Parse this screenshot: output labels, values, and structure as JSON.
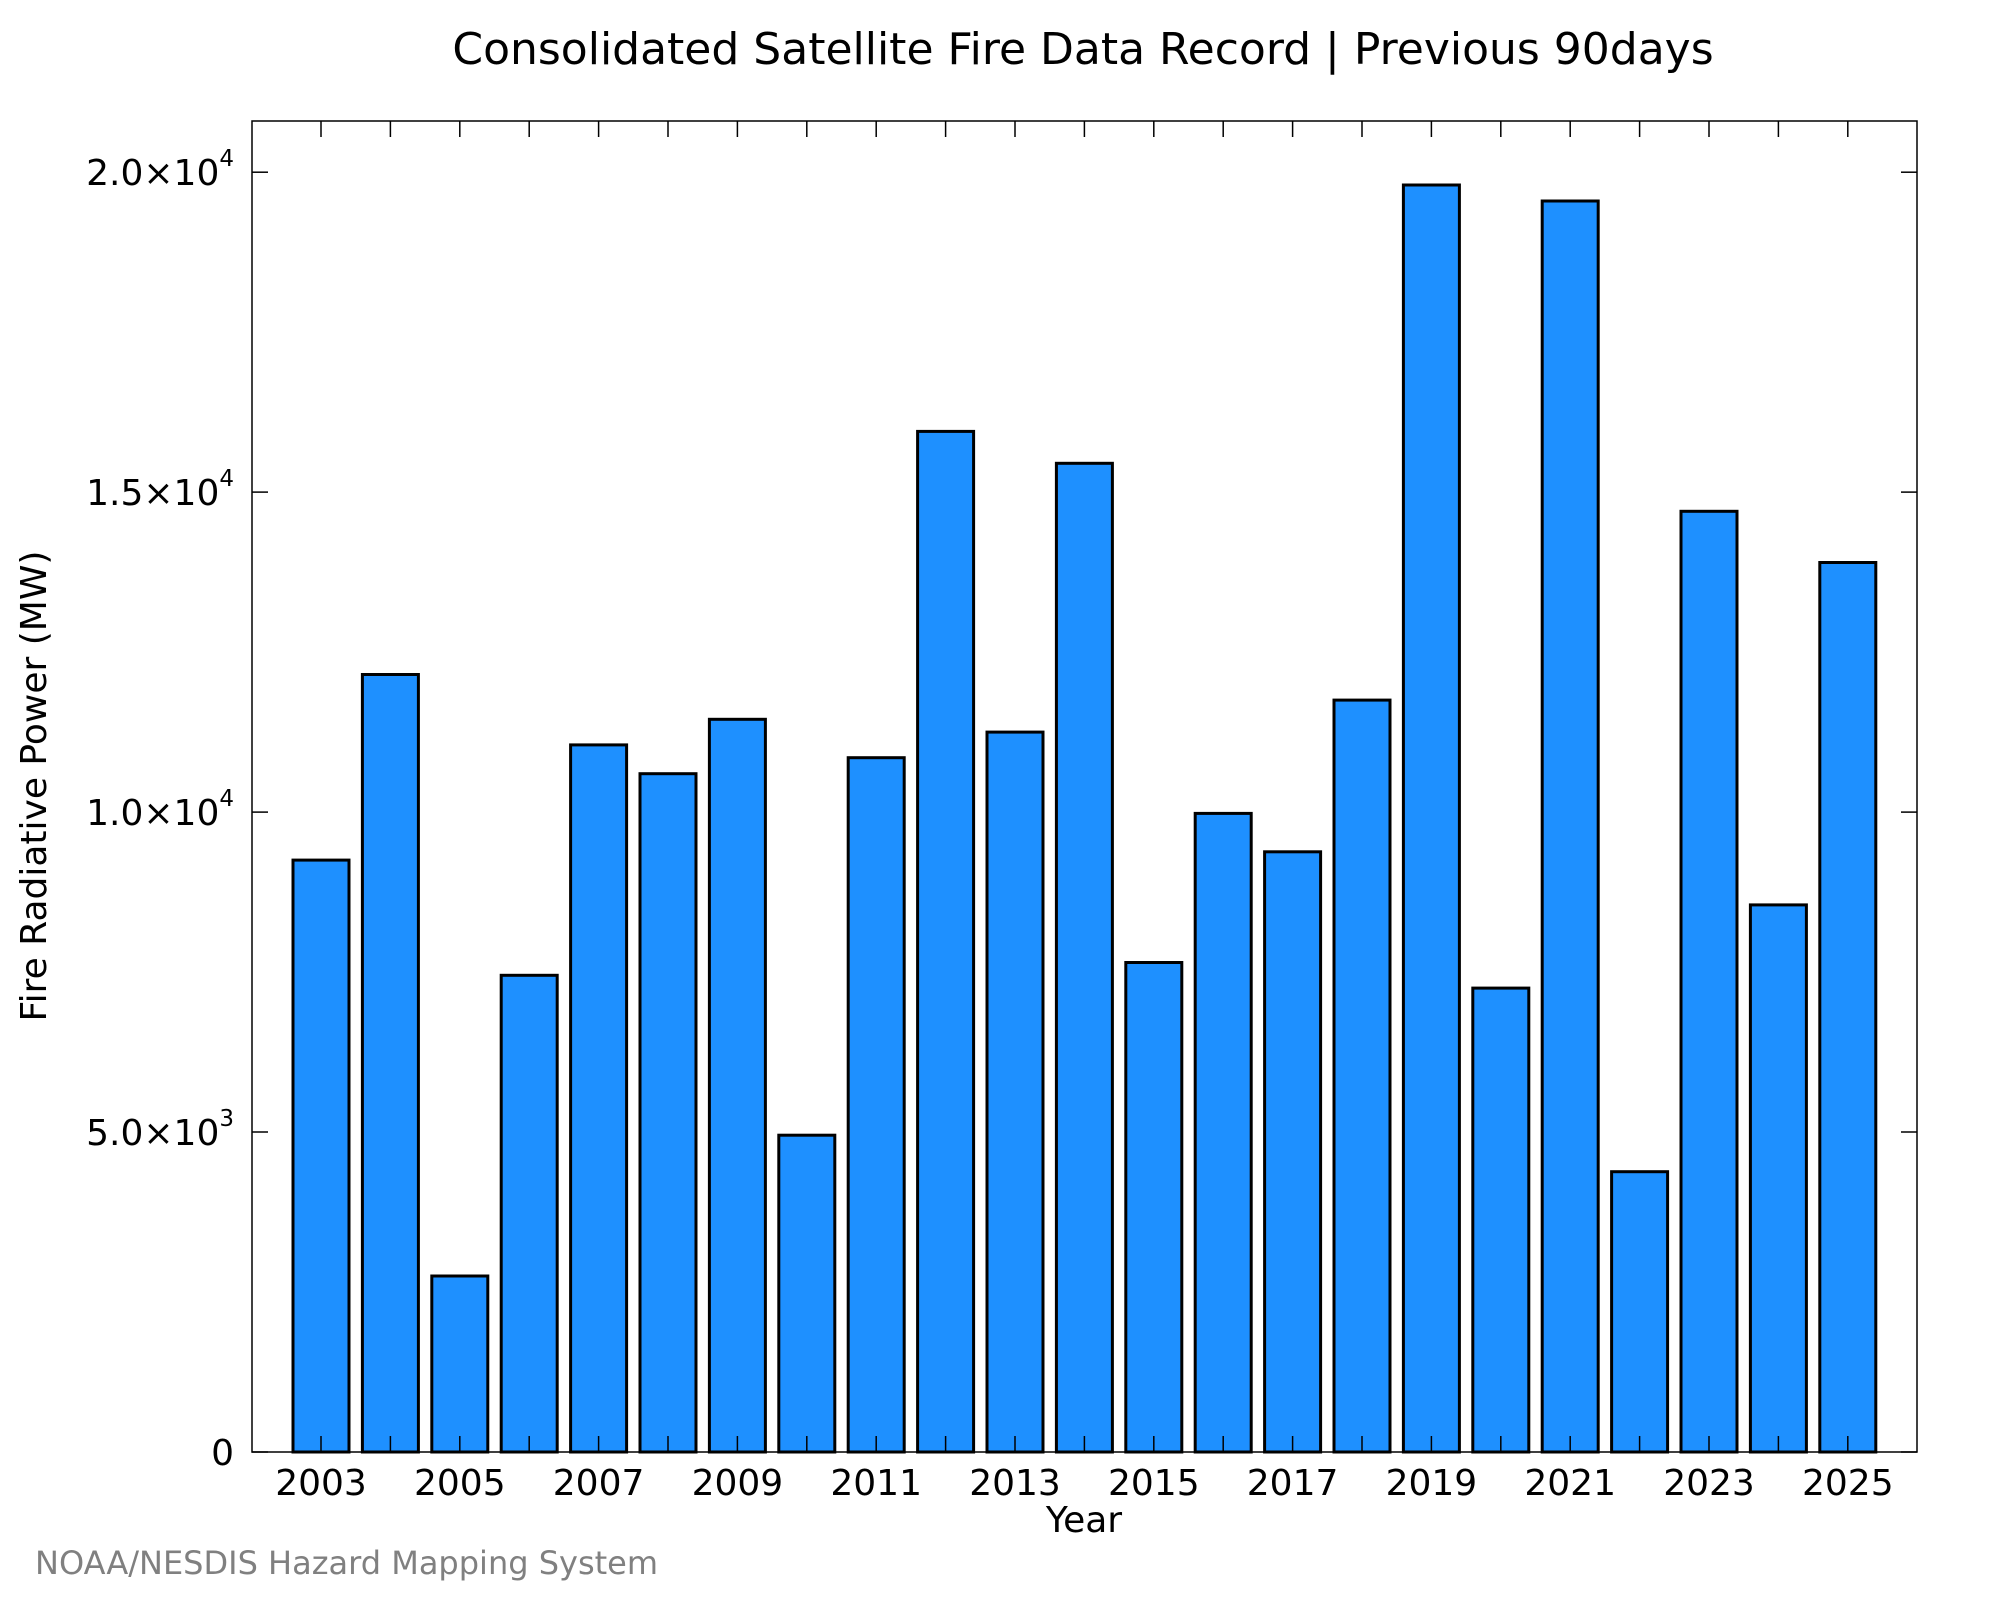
{
  "chart_data": {
    "type": "bar",
    "title": "Consolidated Satellite Fire Data Record | Previous 90days",
    "xlabel": "Year",
    "ylabel": "Fire Radiative Power (MW)",
    "categories": [
      "2003",
      "2004",
      "2005",
      "2006",
      "2007",
      "2008",
      "2009",
      "2010",
      "2011",
      "2012",
      "2013",
      "2014",
      "2015",
      "2016",
      "2017",
      "2018",
      "2019",
      "2020",
      "2021",
      "2022",
      "2023",
      "2024",
      "2025"
    ],
    "values": [
      9250,
      12150,
      2750,
      7450,
      11050,
      10600,
      11450,
      4950,
      10850,
      15950,
      11250,
      15450,
      7650,
      9980,
      9380,
      11750,
      19800,
      7250,
      19550,
      4380,
      14700,
      8550,
      13900
    ],
    "ylim": [
      0,
      20800
    ],
    "x_tick_labels": [
      "2003",
      "2005",
      "2007",
      "2009",
      "2011",
      "2013",
      "2015",
      "2017",
      "2019",
      "2021",
      "2023",
      "2025"
    ],
    "y_ticks": [
      {
        "value": 0,
        "mantissa": "0",
        "exponent": ""
      },
      {
        "value": 5000,
        "mantissa": "5.0×10",
        "exponent": "3"
      },
      {
        "value": 10000,
        "mantissa": "1.0×10",
        "exponent": "4"
      },
      {
        "value": 15000,
        "mantissa": "1.5×10",
        "exponent": "4"
      },
      {
        "value": 20000,
        "mantissa": "2.0×10",
        "exponent": "4"
      }
    ],
    "bar_color": "#1e90ff",
    "grid": false,
    "legend": "none"
  },
  "credit": "NOAA/NESDIS Hazard Mapping System"
}
